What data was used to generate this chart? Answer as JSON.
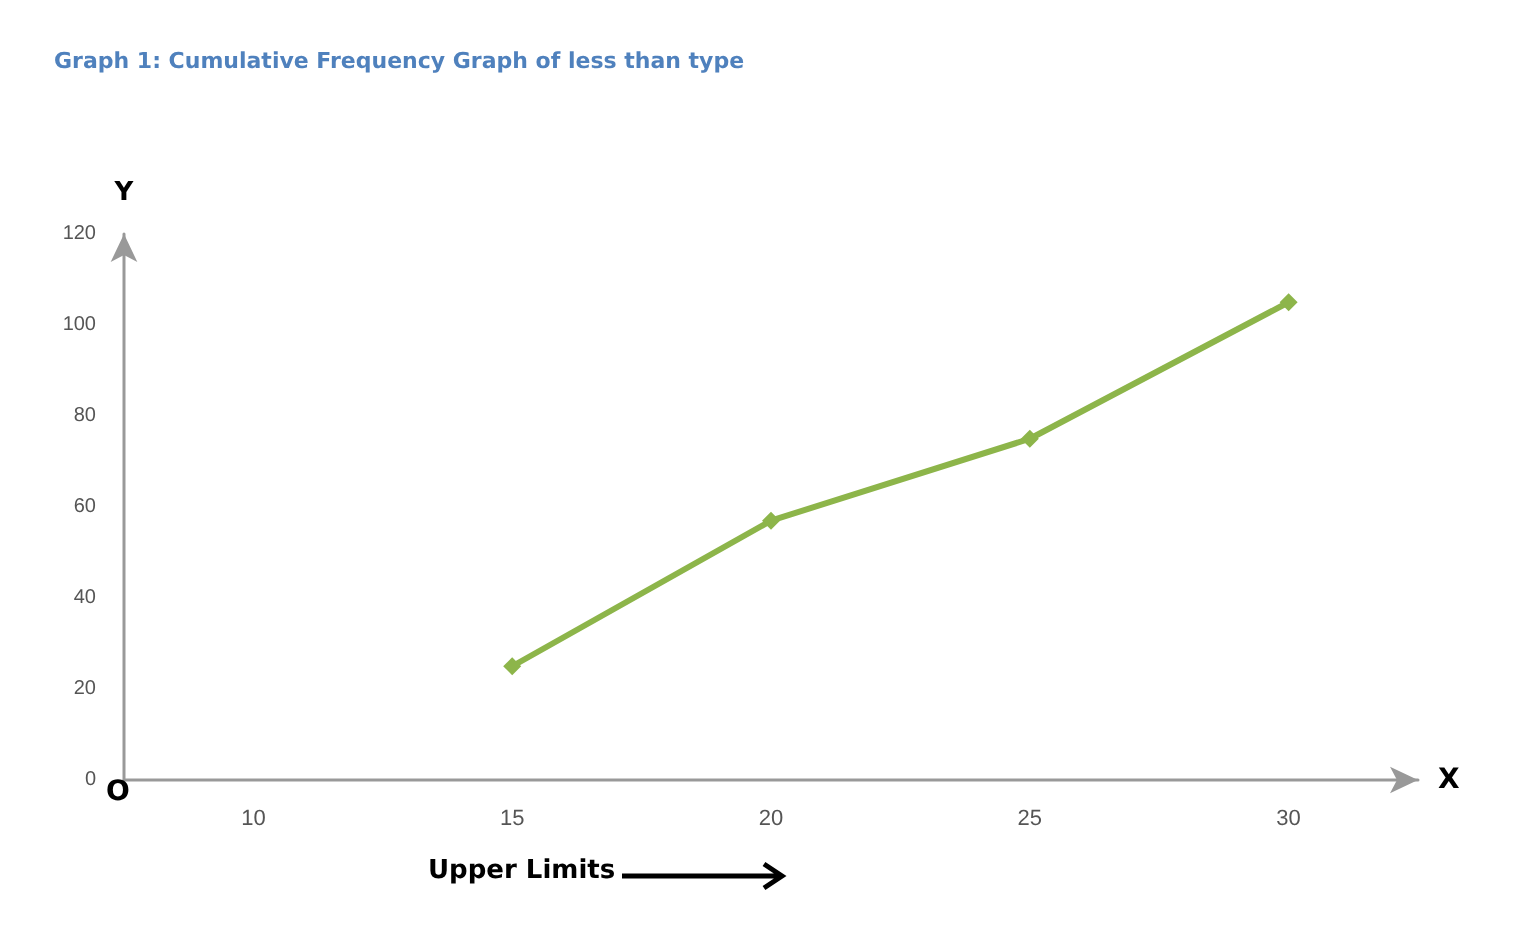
{
  "chart_data": {
    "type": "line",
    "title": "Graph 1: Cumulative Frequency Graph of less than type",
    "xlabel": "X",
    "ylabel": "Y",
    "annotations": [
      "Upper Limits",
      "O"
    ],
    "categories": [
      "10",
      "15",
      "20",
      "25",
      "30"
    ],
    "series": [
      {
        "color": "#8db54a",
        "values": [
          null,
          25,
          57,
          75,
          105
        ]
      }
    ],
    "ylim": [
      0,
      120
    ],
    "yticks": [
      0,
      20,
      40,
      60,
      80,
      100,
      120
    ],
    "grid": false,
    "marker": "diamond",
    "line_style": "solid"
  }
}
